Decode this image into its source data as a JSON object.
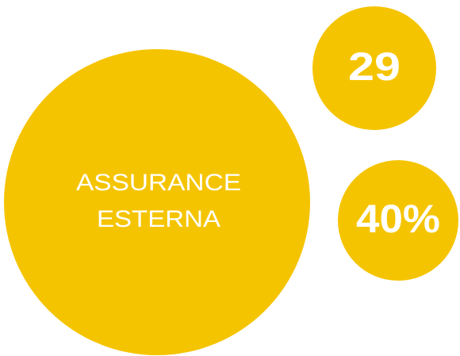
{
  "main": {
    "label_lines": [
      "ASSURANCE",
      "ESTERNA"
    ]
  },
  "stats": [
    "29",
    "40%"
  ]
}
